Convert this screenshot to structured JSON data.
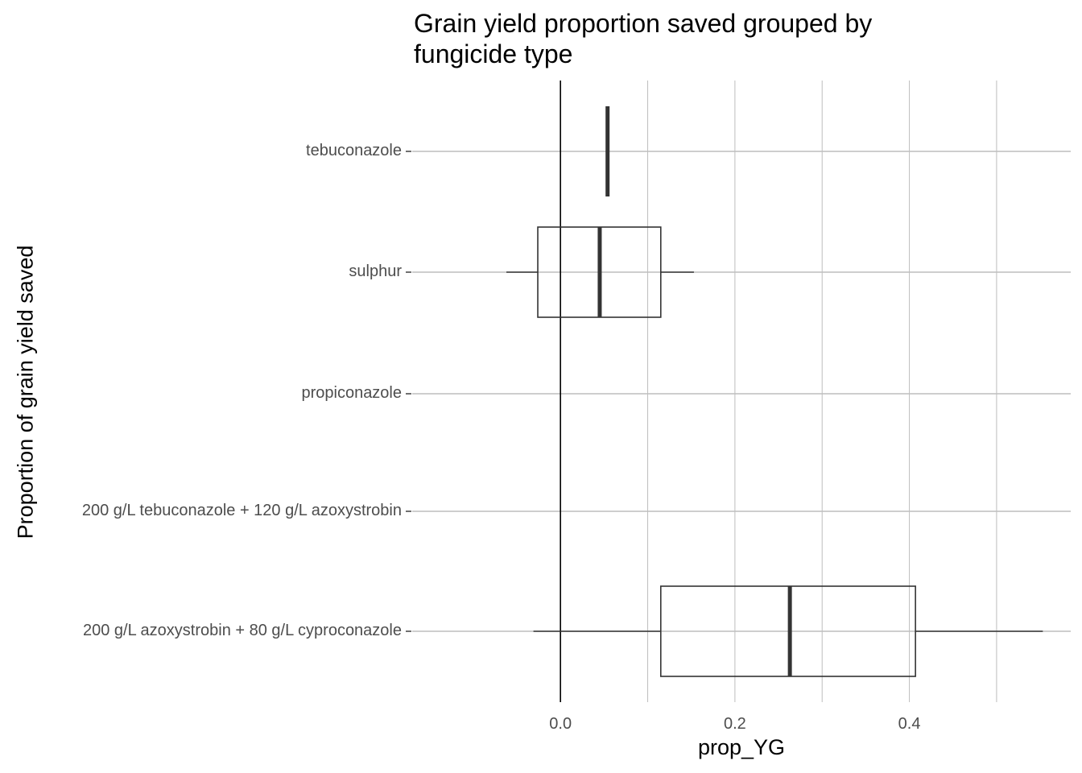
{
  "chart_data": {
    "type": "box",
    "orientation": "horizontal",
    "title": "Grain yield proportion saved grouped by\nfungicide type",
    "xlabel": "prop_YG",
    "ylabel": "Proportion of grain yield saved",
    "xlim": [
      -0.17,
      0.585
    ],
    "x_ticks": [
      0.0,
      0.2,
      0.4
    ],
    "x_tick_labels": [
      "0.0",
      "0.2",
      "0.4"
    ],
    "x_minor_gridlines": [
      0.1,
      0.3,
      0.5
    ],
    "reference_line_x": 0,
    "grid": true,
    "categories": [
      "tebuconazole",
      "sulphur",
      "propiconazole",
      "200 g/L tebuconazole + 120 g/L azoxystrobin",
      "200 g/L azoxystrobin + 80 g/L cyproconazole"
    ],
    "boxes": [
      {
        "category": "tebuconazole",
        "min": 0.054,
        "q1": 0.054,
        "median": 0.054,
        "q3": 0.054,
        "max": 0.054
      },
      {
        "category": "sulphur",
        "min": -0.062,
        "q1": -0.026,
        "median": 0.045,
        "q3": 0.115,
        "max": 0.153
      },
      {
        "category": "propiconazole",
        "min": null,
        "q1": null,
        "median": null,
        "q3": null,
        "max": null
      },
      {
        "category": "200 g/L tebuconazole + 120 g/L azoxystrobin",
        "min": null,
        "q1": null,
        "median": null,
        "q3": null,
        "max": null
      },
      {
        "category": "200 g/L azoxystrobin + 80 g/L cyproconazole",
        "min": -0.031,
        "q1": 0.115,
        "median": 0.263,
        "q3": 0.407,
        "max": 0.553
      }
    ],
    "colors": {
      "box_stroke": "#333333",
      "box_fill": "#ffffff",
      "grid": "#bebebe",
      "reference_line": "#000000"
    }
  }
}
